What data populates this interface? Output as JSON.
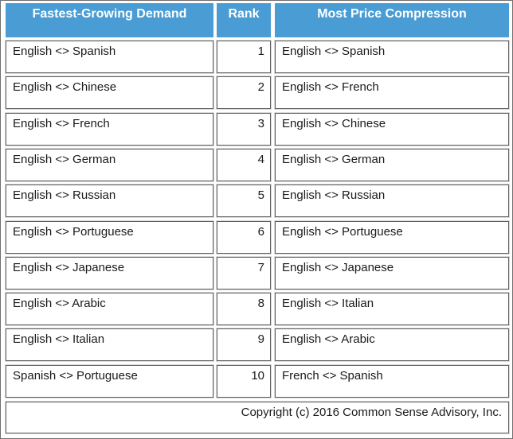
{
  "table": {
    "headers": {
      "demand": "Fastest-Growing Demand",
      "rank": "Rank",
      "compression": "Most Price Compression"
    },
    "rows": [
      {
        "demand": "English <> Spanish",
        "rank": "1",
        "compression": "English <> Spanish"
      },
      {
        "demand": "English <> Chinese",
        "rank": "2",
        "compression": "English <> French"
      },
      {
        "demand": "English <> French",
        "rank": "3",
        "compression": "English <> Chinese"
      },
      {
        "demand": "English <> German",
        "rank": "4",
        "compression": "English <> German"
      },
      {
        "demand": "English <> Russian",
        "rank": "5",
        "compression": "English <> Russian"
      },
      {
        "demand": "English <> Portuguese",
        "rank": "6",
        "compression": "English <> Portuguese"
      },
      {
        "demand": "English <> Japanese",
        "rank": "7",
        "compression": "English <> Japanese"
      },
      {
        "demand": "English <> Arabic",
        "rank": "8",
        "compression": "English <> Italian"
      },
      {
        "demand": "English <> Italian",
        "rank": "9",
        "compression": "English <> Arabic"
      },
      {
        "demand": "Spanish <> Portuguese",
        "rank": "10",
        "compression": "French <> Spanish"
      }
    ],
    "copyright": "Copyright (c) 2016 Common Sense Advisory, Inc."
  },
  "colors": {
    "header_bg": "#4a9dd4",
    "header_text": "#ffffff",
    "cell_border": "#5f5f5f"
  }
}
